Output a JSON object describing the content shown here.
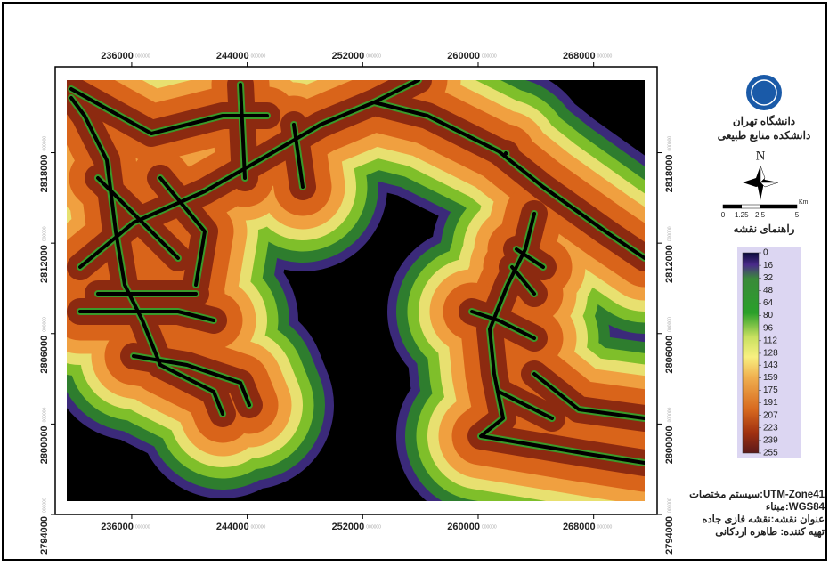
{
  "header": {
    "university": "دانشگاه تهران",
    "faculty": "دانشکده منابع طبیعی"
  },
  "north": "N",
  "scale_bar": {
    "unit": "Km",
    "ticks": [
      0,
      1.25,
      2.5,
      5
    ]
  },
  "legend": {
    "title": "راهنمای نقشه",
    "lim": [
      0,
      255
    ],
    "values": [
      0,
      16,
      32,
      48,
      64,
      80,
      96,
      112,
      128,
      143,
      159,
      175,
      191,
      207,
      223,
      239,
      255
    ]
  },
  "map": {
    "xlim": [
      230700,
      272400
    ],
    "ylim": [
      2794000,
      2823700
    ],
    "xticks": [
      236000,
      244000,
      252000,
      260000,
      268000
    ],
    "yticks": [
      2794000,
      2800000,
      2806000,
      2812000,
      2818000
    ],
    "tick_suffix": "000000"
  },
  "info": [
    "سیستم مختصات:UTM-Zone41",
    "مبناء:WGS84",
    "عنوان نقشه:نقشه فازی جاده",
    "تهیه کننده: طاهره اردکانی"
  ]
}
